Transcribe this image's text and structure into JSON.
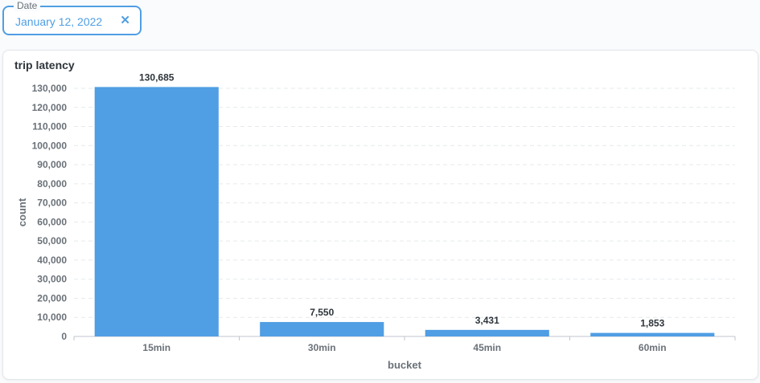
{
  "filter": {
    "label": "Date",
    "value": "January 12, 2022",
    "clear_icon": "close-icon"
  },
  "colors": {
    "accent": "#509ee3",
    "bar": "#509ee3"
  },
  "chart_data": {
    "type": "bar",
    "title": "trip latency",
    "xlabel": "bucket",
    "ylabel": "count",
    "categories": [
      "15min",
      "30min",
      "45min",
      "60min"
    ],
    "values": [
      130685,
      7550,
      3431,
      1853
    ],
    "data_labels": [
      "130,685",
      "7,550",
      "3,431",
      "1,853"
    ],
    "ylim": [
      0,
      130000
    ],
    "yticks": [
      0,
      10000,
      20000,
      30000,
      40000,
      50000,
      60000,
      70000,
      80000,
      90000,
      100000,
      110000,
      120000,
      130000
    ],
    "ytick_labels": [
      "0",
      "10,000",
      "20,000",
      "30,000",
      "40,000",
      "50,000",
      "60,000",
      "70,000",
      "80,000",
      "90,000",
      "100,000",
      "110,000",
      "120,000",
      "130,000"
    ],
    "grid": true
  }
}
